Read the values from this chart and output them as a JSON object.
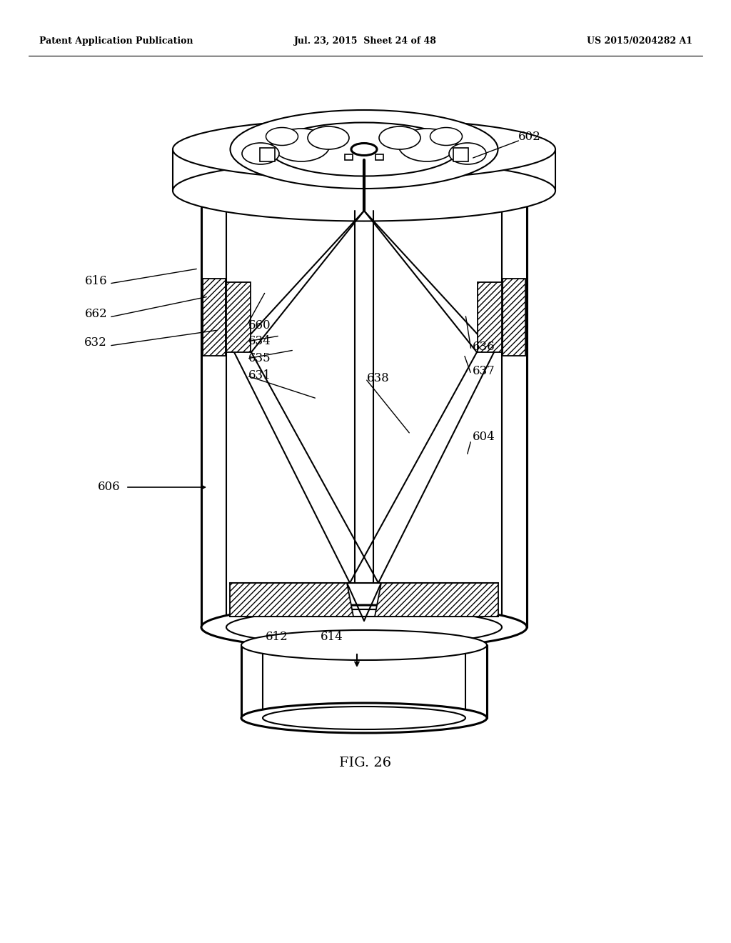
{
  "header_left": "Patent Application Publication",
  "header_center": "Jul. 23, 2015  Sheet 24 of 48",
  "header_right": "US 2015/0204282 A1",
  "title": "FIG. 26",
  "bg": "#ffffff"
}
